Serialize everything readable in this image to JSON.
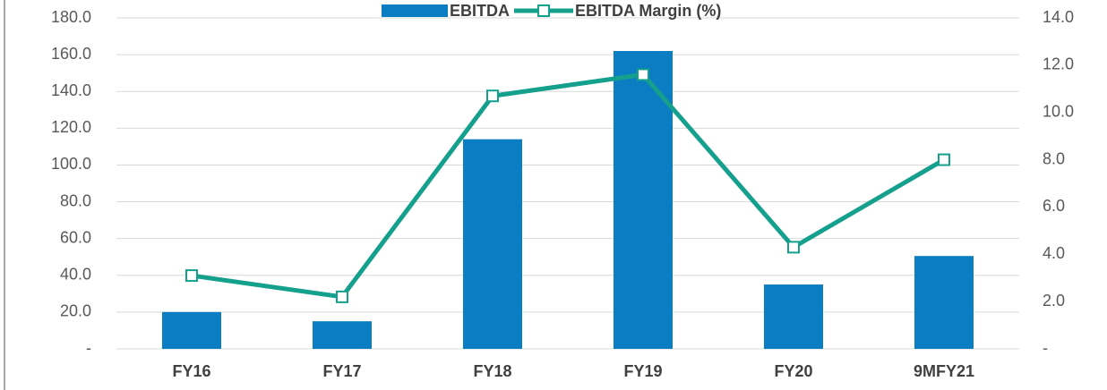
{
  "chart_data": {
    "type": "bar",
    "categories": [
      "FY16",
      "FY17",
      "FY18",
      "FY19",
      "FY20",
      "9MFY21"
    ],
    "series": [
      {
        "name": "EBITDA",
        "type": "bar",
        "color": "#0b7dc2",
        "values": [
          20,
          15,
          114,
          162,
          35,
          50.5
        ]
      },
      {
        "name": "EBITDA Margin (%)",
        "type": "line",
        "axis": "y2",
        "color": "#14a08c",
        "values": [
          3.1,
          2.2,
          10.7,
          11.6,
          4.3,
          8.0
        ]
      }
    ],
    "ylim": [
      0,
      180
    ],
    "yticks": [
      {
        "value": 0,
        "label": "-"
      },
      {
        "value": 20,
        "label": "20.0"
      },
      {
        "value": 40,
        "label": "40.0"
      },
      {
        "value": 60,
        "label": "60.0"
      },
      {
        "value": 80,
        "label": "80.0"
      },
      {
        "value": 100,
        "label": "100.0"
      },
      {
        "value": 120,
        "label": "120.0"
      },
      {
        "value": 140,
        "label": "140.0"
      },
      {
        "value": 160,
        "label": "160.0"
      },
      {
        "value": 180,
        "label": "180.0"
      }
    ],
    "y2lim": [
      0,
      14
    ],
    "y2ticks": [
      {
        "value": 0,
        "label": "-"
      },
      {
        "value": 2,
        "label": "2.0"
      },
      {
        "value": 4,
        "label": "4.0"
      },
      {
        "value": 6,
        "label": "6.0"
      },
      {
        "value": 8,
        "label": "8.0"
      },
      {
        "value": 10,
        "label": "10.0"
      },
      {
        "value": 12,
        "label": "12.0"
      },
      {
        "value": 14,
        "label": "14.0"
      }
    ],
    "grid": true,
    "legend": "top"
  }
}
